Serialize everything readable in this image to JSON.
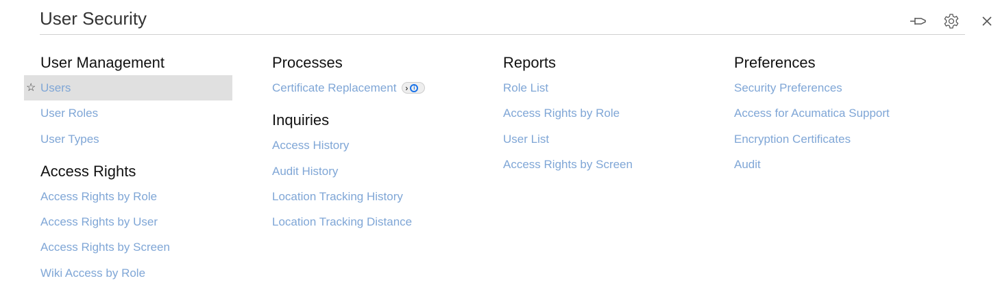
{
  "header": {
    "title": "User Security"
  },
  "toolbar": {
    "pin_icon": "pin-icon",
    "settings_icon": "gear-icon",
    "close_icon": "close-icon"
  },
  "columns": [
    {
      "sections": [
        {
          "heading": "User Management",
          "links": [
            "Users",
            "User Roles",
            "User Types"
          ]
        },
        {
          "heading": "Access Rights",
          "links": [
            "Access Rights by Role",
            "Access Rights by User",
            "Access Rights by Screen",
            "Wiki Access by Role"
          ]
        }
      ]
    },
    {
      "sections": [
        {
          "heading": "Processes",
          "links": [
            "Certificate Replacement"
          ]
        },
        {
          "heading": "Inquiries",
          "links": [
            "Access History",
            "Audit History",
            "Location Tracking History",
            "Location Tracking Distance"
          ]
        }
      ]
    },
    {
      "sections": [
        {
          "heading": "Reports",
          "links": [
            "Role List",
            "Access Rights by Role",
            "User List",
            "Access Rights by Screen"
          ]
        }
      ]
    },
    {
      "sections": [
        {
          "heading": "Preferences",
          "links": [
            "Security Preferences",
            "Access for Acumatica Support",
            "Encryption Certificates",
            "Audit"
          ]
        }
      ]
    }
  ],
  "highlighted_item": "Users",
  "colors": {
    "link": "#7fa6d6",
    "highlight": "#e0e0e0"
  }
}
